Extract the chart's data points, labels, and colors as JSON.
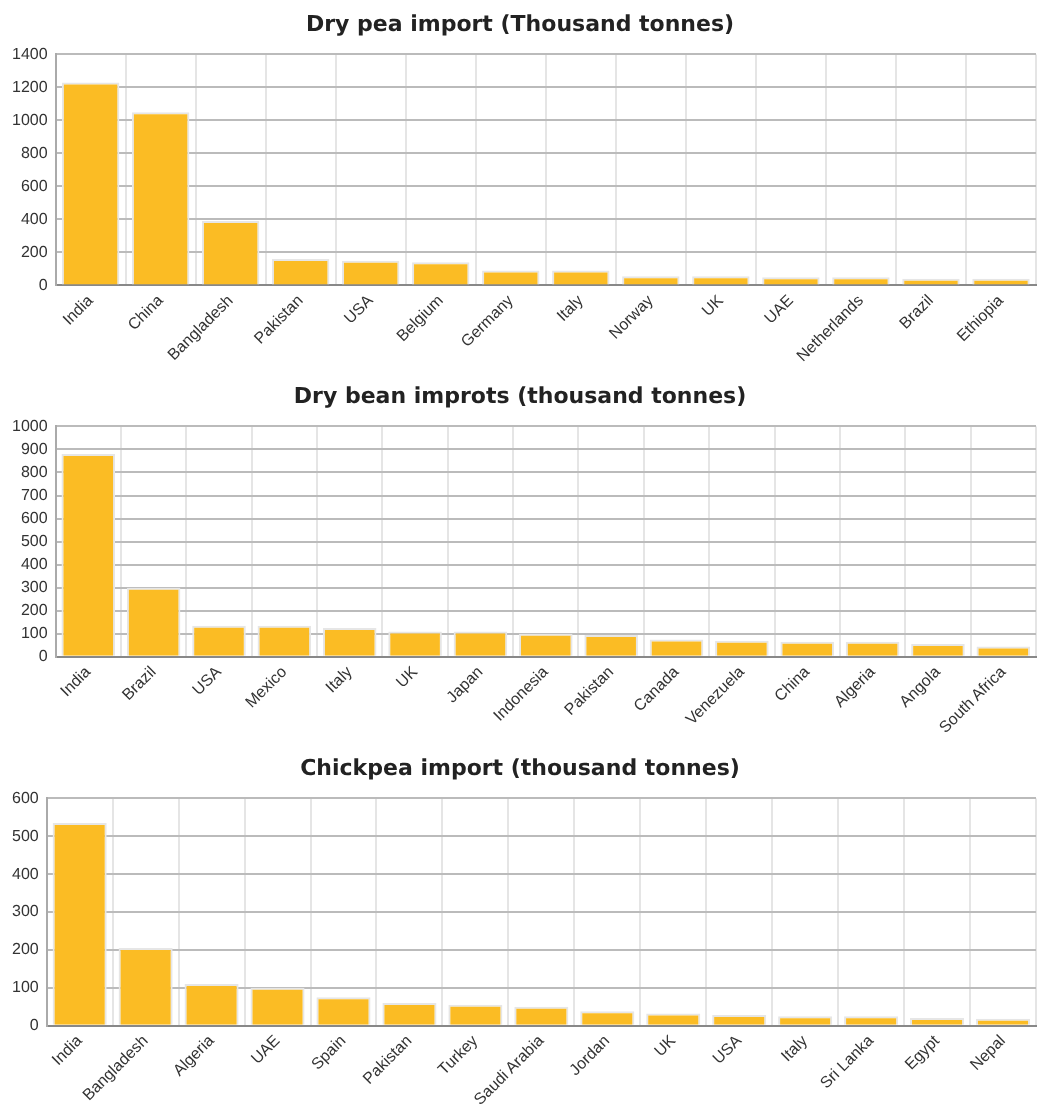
{
  "chart_data": [
    {
      "type": "bar",
      "title": "Dry pea import (Thousand tonnes)",
      "categories": [
        "India",
        "China",
        "Bangladesh",
        "Pakistan",
        "USA",
        "Belgium",
        "Germany",
        "Italy",
        "Norway",
        "UK",
        "UAE",
        "Netherlands",
        "Brazil",
        "Ethiopia"
      ],
      "values": [
        1230,
        1050,
        390,
        160,
        150,
        140,
        90,
        90,
        55,
        55,
        50,
        50,
        40,
        40
      ],
      "color": "#fbbc24",
      "ylim": [
        0,
        1400
      ],
      "yticks": [
        0,
        200,
        400,
        600,
        800,
        1000,
        1200,
        1400
      ],
      "grid": true
    },
    {
      "type": "bar",
      "title": "Dry bean improts (thousand tonnes)",
      "categories": [
        "India",
        "Brazil",
        "USA",
        "Mexico",
        "Italy",
        "UK",
        "Japan",
        "Indonesia",
        "Pakistan",
        "Canada",
        "Venezuela",
        "China",
        "Algeria",
        "Angola",
        "South Africa"
      ],
      "values": [
        880,
        300,
        135,
        135,
        125,
        110,
        110,
        100,
        95,
        75,
        70,
        65,
        65,
        55,
        45
      ],
      "color": "#fbbc24",
      "ylim": [
        0,
        1000
      ],
      "yticks": [
        0,
        100,
        200,
        300,
        400,
        500,
        600,
        700,
        800,
        900,
        1000
      ],
      "grid": true
    },
    {
      "type": "bar",
      "title": "Chickpea import (thousand tonnes)",
      "categories": [
        "India",
        "Bangladesh",
        "Algeria",
        "UAE",
        "Spain",
        "Pakistan",
        "Turkey",
        "Saudi Arabia",
        "Jordan",
        "UK",
        "USA",
        "Italy",
        "Sri Lanka",
        "Egypt",
        "Nepal"
      ],
      "values": [
        535,
        205,
        110,
        100,
        75,
        60,
        55,
        50,
        38,
        32,
        28,
        25,
        25,
        20,
        18
      ],
      "color": "#fbbc24",
      "ylim": [
        0,
        600
      ],
      "yticks": [
        0,
        100,
        200,
        300,
        400,
        500,
        600
      ],
      "grid": true
    }
  ]
}
